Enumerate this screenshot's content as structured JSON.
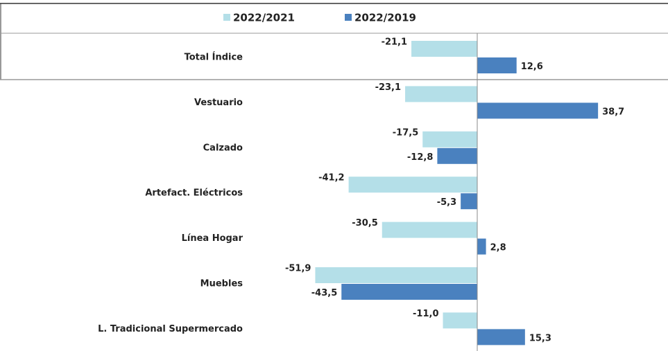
{
  "chart_data": {
    "type": "barh",
    "categories": [
      "Total Índice",
      "Vestuario",
      "Calzado",
      "Artefact. Eléctricos",
      "Línea Hogar",
      "Muebles",
      "L. Tradicional Supermercado"
    ],
    "series": [
      {
        "name": "2022/2021",
        "color": "#b4dfe8",
        "values": [
          -21.1,
          -23.1,
          -17.5,
          -41.2,
          -30.5,
          -51.9,
          -11.0
        ],
        "value_labels": [
          "-21,1",
          "-23,1",
          "-17,5",
          "-41,2",
          "-30,5",
          "-51,9",
          "-11,0"
        ]
      },
      {
        "name": "2022/2019",
        "color": "#4a81bf",
        "values": [
          12.6,
          38.7,
          -12.8,
          -5.3,
          2.8,
          -43.5,
          15.3
        ],
        "value_labels": [
          "12,6",
          "38,7",
          "-12,8",
          "-5,3",
          "2,8",
          "-43,5",
          "15,3"
        ]
      }
    ],
    "xlim": [
      -60,
      45
    ],
    "legend": "top"
  }
}
